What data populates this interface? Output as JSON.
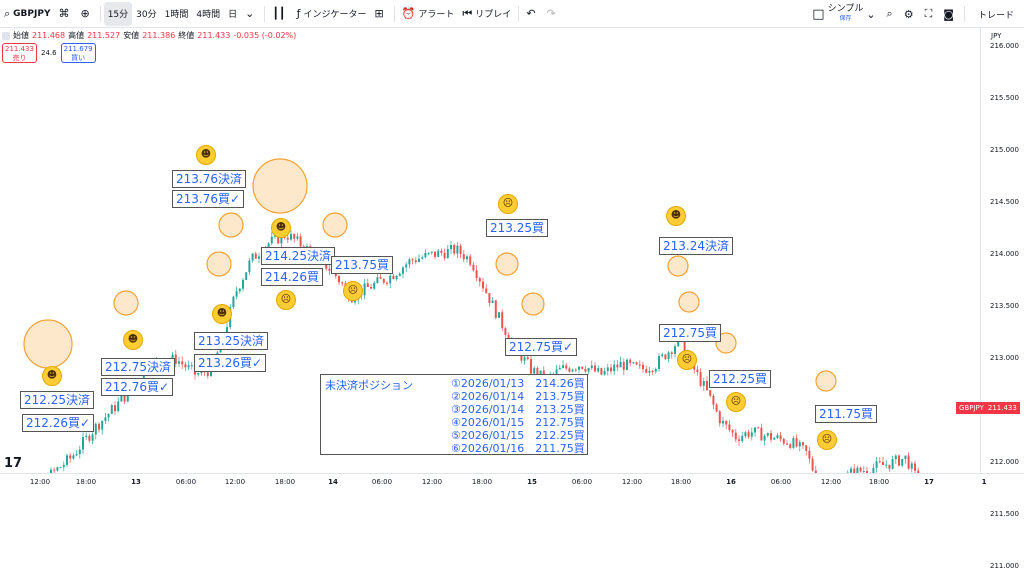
{
  "toolbar": {
    "symbol": "GBPJPY",
    "interval_15": "15分",
    "interval_30": "30分",
    "interval_1h": "1時間",
    "interval_4h": "4時間",
    "interval_d": "日",
    "indicators": "インジケーター",
    "alert": "アラート",
    "replay": "リプレイ",
    "layout": "シンプル",
    "layout_sub": "保存",
    "trade": "トレード"
  },
  "ohlc": {
    "open_label": "始値",
    "open": "211.468",
    "high_label": "高値",
    "high": "211.527",
    "low_label": "安値",
    "low": "211.386",
    "close_label": "終値",
    "close": "211.433",
    "change": "-0.035 (-0.02%)"
  },
  "trade": {
    "sell_price": "211.433",
    "sell_label": "売り",
    "spread": "24.6",
    "buy_price": "211.679",
    "buy_label": "買い"
  },
  "axis": {
    "currency": "JPY",
    "price_ticks": [
      "216.000",
      "215.500",
      "215.000",
      "214.500",
      "214.000",
      "213.500",
      "213.000",
      "212.500",
      "212.000",
      "211.500",
      "211.000"
    ],
    "time_ticks": [
      "12:00",
      "18:00",
      "13",
      "06:00",
      "12:00",
      "18:00",
      "14",
      "06:00",
      "12:00",
      "18:00",
      "15",
      "06:00",
      "12:00",
      "18:00",
      "16",
      "06:00",
      "12:00",
      "18:00",
      "17",
      "1"
    ],
    "current_symbol": "GBPJPY",
    "current_price": "211.433"
  },
  "annotations": [
    "212.25決済",
    "212.26買✓",
    "212.75決済",
    "212.76買✓",
    "213.76決済",
    "213.76買✓",
    "213.25決済",
    "213.26買✓",
    "214.25決済",
    "214.26買",
    "213.75買",
    "213.25買",
    "212.75買✓",
    "213.24決済",
    "212.75買",
    "212.25買",
    "211.75買"
  ],
  "summary": {
    "title": "未決済ポジション",
    "rows": [
      "①2026/01/13　214.26買",
      "②2026/01/14　213.75買",
      "③2026/01/14　213.25買",
      "④2026/01/15　212.75買",
      "⑤2026/01/15　212.25買",
      "⑥2026/01/16　211.75買"
    ]
  },
  "colors": {
    "up": "#26a69a",
    "down": "#ef5350",
    "circle": "#f7a233",
    "accent": "#2962ff",
    "current": "#f23645"
  },
  "icons": {
    "smile": "smiling-face-icon",
    "worried": "worried-face-icon"
  }
}
